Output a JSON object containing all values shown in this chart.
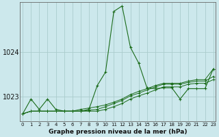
{
  "title": "Graphe pression niveau de la mer (hPa)",
  "bg_color": "#cce8ec",
  "grid_color": "#aacccc",
  "line_color": "#1a6b1a",
  "x_labels": [
    "0",
    "1",
    "2",
    "3",
    "4",
    "5",
    "6",
    "7",
    "8",
    "9",
    "10",
    "11",
    "12",
    "13",
    "14",
    "15",
    "16",
    "17",
    "18",
    "19",
    "20",
    "21",
    "22",
    "23"
  ],
  "yticks": [
    1023,
    1024
  ],
  "ylim": [
    1022.45,
    1025.1
  ],
  "xlim": [
    -0.3,
    23.3
  ],
  "main_series": [
    1022.62,
    1022.95,
    1022.72,
    1022.95,
    1022.72,
    1022.68,
    1022.68,
    1022.68,
    1022.72,
    1023.25,
    1023.55,
    1024.9,
    1025.02,
    1024.1,
    1023.75,
    1023.2,
    1023.18,
    1023.2,
    1023.2,
    1022.95,
    1023.18,
    1023.18,
    1023.18,
    1023.62
  ],
  "trend1": [
    1022.62,
    1022.68,
    1022.68,
    1022.68,
    1022.68,
    1022.68,
    1022.68,
    1022.72,
    1022.75,
    1022.78,
    1022.82,
    1022.88,
    1022.95,
    1023.05,
    1023.12,
    1023.18,
    1023.25,
    1023.3,
    1023.3,
    1023.3,
    1023.35,
    1023.38,
    1023.38,
    1023.62
  ],
  "trend2": [
    1022.62,
    1022.68,
    1022.68,
    1022.68,
    1022.68,
    1022.68,
    1022.68,
    1022.68,
    1022.7,
    1022.72,
    1022.78,
    1022.85,
    1022.92,
    1023.02,
    1023.08,
    1023.15,
    1023.22,
    1023.28,
    1023.28,
    1023.28,
    1023.32,
    1023.35,
    1023.35,
    1023.45
  ],
  "trend3": [
    1022.62,
    1022.68,
    1022.68,
    1022.68,
    1022.68,
    1022.68,
    1022.68,
    1022.68,
    1022.68,
    1022.68,
    1022.72,
    1022.78,
    1022.85,
    1022.95,
    1023.02,
    1023.08,
    1023.15,
    1023.22,
    1023.22,
    1023.22,
    1023.28,
    1023.3,
    1023.3,
    1023.38
  ]
}
